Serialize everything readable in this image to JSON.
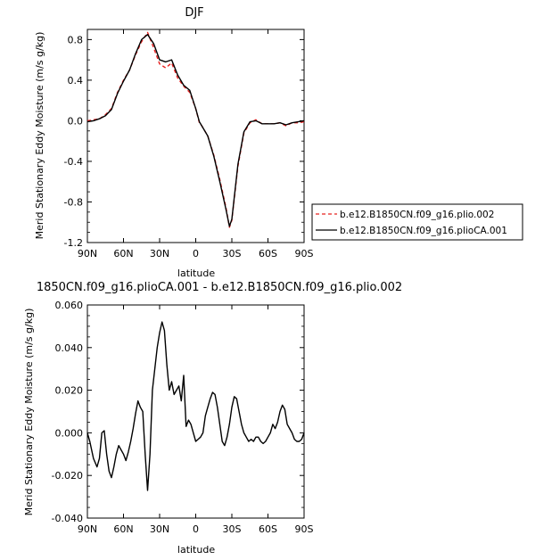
{
  "chart_data": [
    {
      "type": "line",
      "title": "DJF",
      "xlabel": "latitude",
      "ylabel": "Merid Stationary Eddy Moisture (m/s g/kg)",
      "x_ticks": [
        "90N",
        "60N",
        "30N",
        "0",
        "30S",
        "60S",
        "90S"
      ],
      "y_ticks": [
        "-1.2",
        "-0.8",
        "-0.4",
        "0.0",
        "0.4",
        "0.8"
      ],
      "xlim": [
        90,
        -90
      ],
      "ylim": [
        -1.2,
        0.9
      ],
      "legend_position": "right",
      "series": [
        {
          "name": "b.e12.B1850CN.f09_g16.plio.002",
          "color": "#e8201f",
          "dash": "dashed",
          "x": [
            90,
            85,
            80,
            75,
            70,
            65,
            60,
            55,
            50,
            45,
            40,
            35,
            30,
            25,
            20,
            15,
            10,
            5,
            0,
            -3,
            -5,
            -10,
            -15,
            -20,
            -25,
            -28,
            -30,
            -35,
            -40,
            -45,
            -50,
            -55,
            -60,
            -65,
            -70,
            -75,
            -80,
            -85,
            -90
          ],
          "y": [
            0,
            0.01,
            0.02,
            0.06,
            0.12,
            0.28,
            0.4,
            0.5,
            0.65,
            0.78,
            0.87,
            0.72,
            0.56,
            0.52,
            0.57,
            0.42,
            0.34,
            0.28,
            0.12,
            -0.02,
            -0.05,
            -0.15,
            -0.34,
            -0.58,
            -0.85,
            -1.05,
            -0.98,
            -0.45,
            -0.12,
            -0.02,
            0.01,
            -0.03,
            -0.03,
            -0.03,
            -0.02,
            -0.05,
            -0.02,
            -0.02,
            -0.01
          ]
        },
        {
          "name": "b.e12.B1850CN.f09_g16.plioCA.001",
          "color": "#000000",
          "dash": "solid",
          "x": [
            90,
            85,
            80,
            75,
            70,
            65,
            60,
            55,
            50,
            45,
            40,
            35,
            30,
            25,
            20,
            15,
            10,
            5,
            0,
            -3,
            -5,
            -10,
            -15,
            -20,
            -25,
            -28,
            -30,
            -35,
            -40,
            -45,
            -50,
            -55,
            -60,
            -65,
            -70,
            -75,
            -80,
            -85,
            -90
          ],
          "y": [
            -0.01,
            0,
            0.02,
            0.05,
            0.11,
            0.27,
            0.39,
            0.5,
            0.66,
            0.8,
            0.85,
            0.76,
            0.6,
            0.58,
            0.6,
            0.45,
            0.35,
            0.3,
            0.12,
            -0.01,
            -0.05,
            -0.15,
            -0.35,
            -0.6,
            -0.87,
            -1.04,
            -0.97,
            -0.43,
            -0.11,
            -0.01,
            0,
            -0.03,
            -0.03,
            -0.03,
            -0.02,
            -0.04,
            -0.02,
            -0.01,
            0
          ]
        }
      ]
    },
    {
      "type": "line",
      "title": "1850CN.f09_g16.plioCA.001 - b.e12.B1850CN.f09_g16.plio.002",
      "xlabel": "latitude",
      "ylabel": "Merid Stationary Eddy Moisture (m/s g/kg)",
      "x_ticks": [
        "90N",
        "60N",
        "30N",
        "0",
        "30S",
        "60S",
        "90S"
      ],
      "y_ticks": [
        "-0.040",
        "-0.020",
        "0.000",
        "0.020",
        "0.040",
        "0.060"
      ],
      "xlim": [
        90,
        -90
      ],
      "ylim": [
        -0.04,
        0.06
      ],
      "series": [
        {
          "color": "#000000",
          "dash": "solid",
          "x": [
            90,
            88,
            85,
            82,
            80,
            78,
            76,
            74,
            72,
            70,
            68,
            66,
            64,
            62,
            60,
            58,
            56,
            54,
            52,
            50,
            48,
            46,
            44,
            42,
            40,
            38,
            36,
            34,
            32,
            30,
            28,
            26,
            24,
            22,
            20,
            18,
            16,
            14,
            12,
            10,
            8,
            6,
            4,
            2,
            0,
            -2,
            -4,
            -6,
            -8,
            -10,
            -12,
            -14,
            -16,
            -18,
            -20,
            -22,
            -24,
            -26,
            -28,
            -30,
            -32,
            -34,
            -36,
            -38,
            -40,
            -42,
            -44,
            -46,
            -48,
            -50,
            -52,
            -54,
            -56,
            -58,
            -60,
            -62,
            -64,
            -66,
            -68,
            -70,
            -72,
            -74,
            -76,
            -78,
            -80,
            -82,
            -84,
            -86,
            -88,
            -90
          ],
          "y": [
            0,
            -0.004,
            -0.012,
            -0.016,
            -0.012,
            0,
            0.001,
            -0.01,
            -0.018,
            -0.021,
            -0.016,
            -0.01,
            -0.006,
            -0.008,
            -0.01,
            -0.013,
            -0.009,
            -0.004,
            0.002,
            0.009,
            0.015,
            0.012,
            0.01,
            -0.01,
            -0.027,
            -0.01,
            0.02,
            0.03,
            0.04,
            0.047,
            0.052,
            0.048,
            0.032,
            0.02,
            0.024,
            0.018,
            0.02,
            0.022,
            0.015,
            0.027,
            0.003,
            0.006,
            0.004,
            0,
            -0.004,
            -0.003,
            -0.002,
            0,
            0.008,
            0.012,
            0.016,
            0.019,
            0.018,
            0.012,
            0.004,
            -0.004,
            -0.006,
            -0.002,
            0.004,
            0.012,
            0.017,
            0.016,
            0.01,
            0.004,
            0,
            -0.002,
            -0.004,
            -0.003,
            -0.004,
            -0.002,
            -0.002,
            -0.004,
            -0.005,
            -0.004,
            -0.002,
            0,
            0.004,
            0.002,
            0.005,
            0.01,
            0.013,
            0.011,
            0.004,
            0.002,
            0,
            -0.003,
            -0.004,
            -0.004,
            -0.003,
            0
          ]
        }
      ]
    }
  ]
}
